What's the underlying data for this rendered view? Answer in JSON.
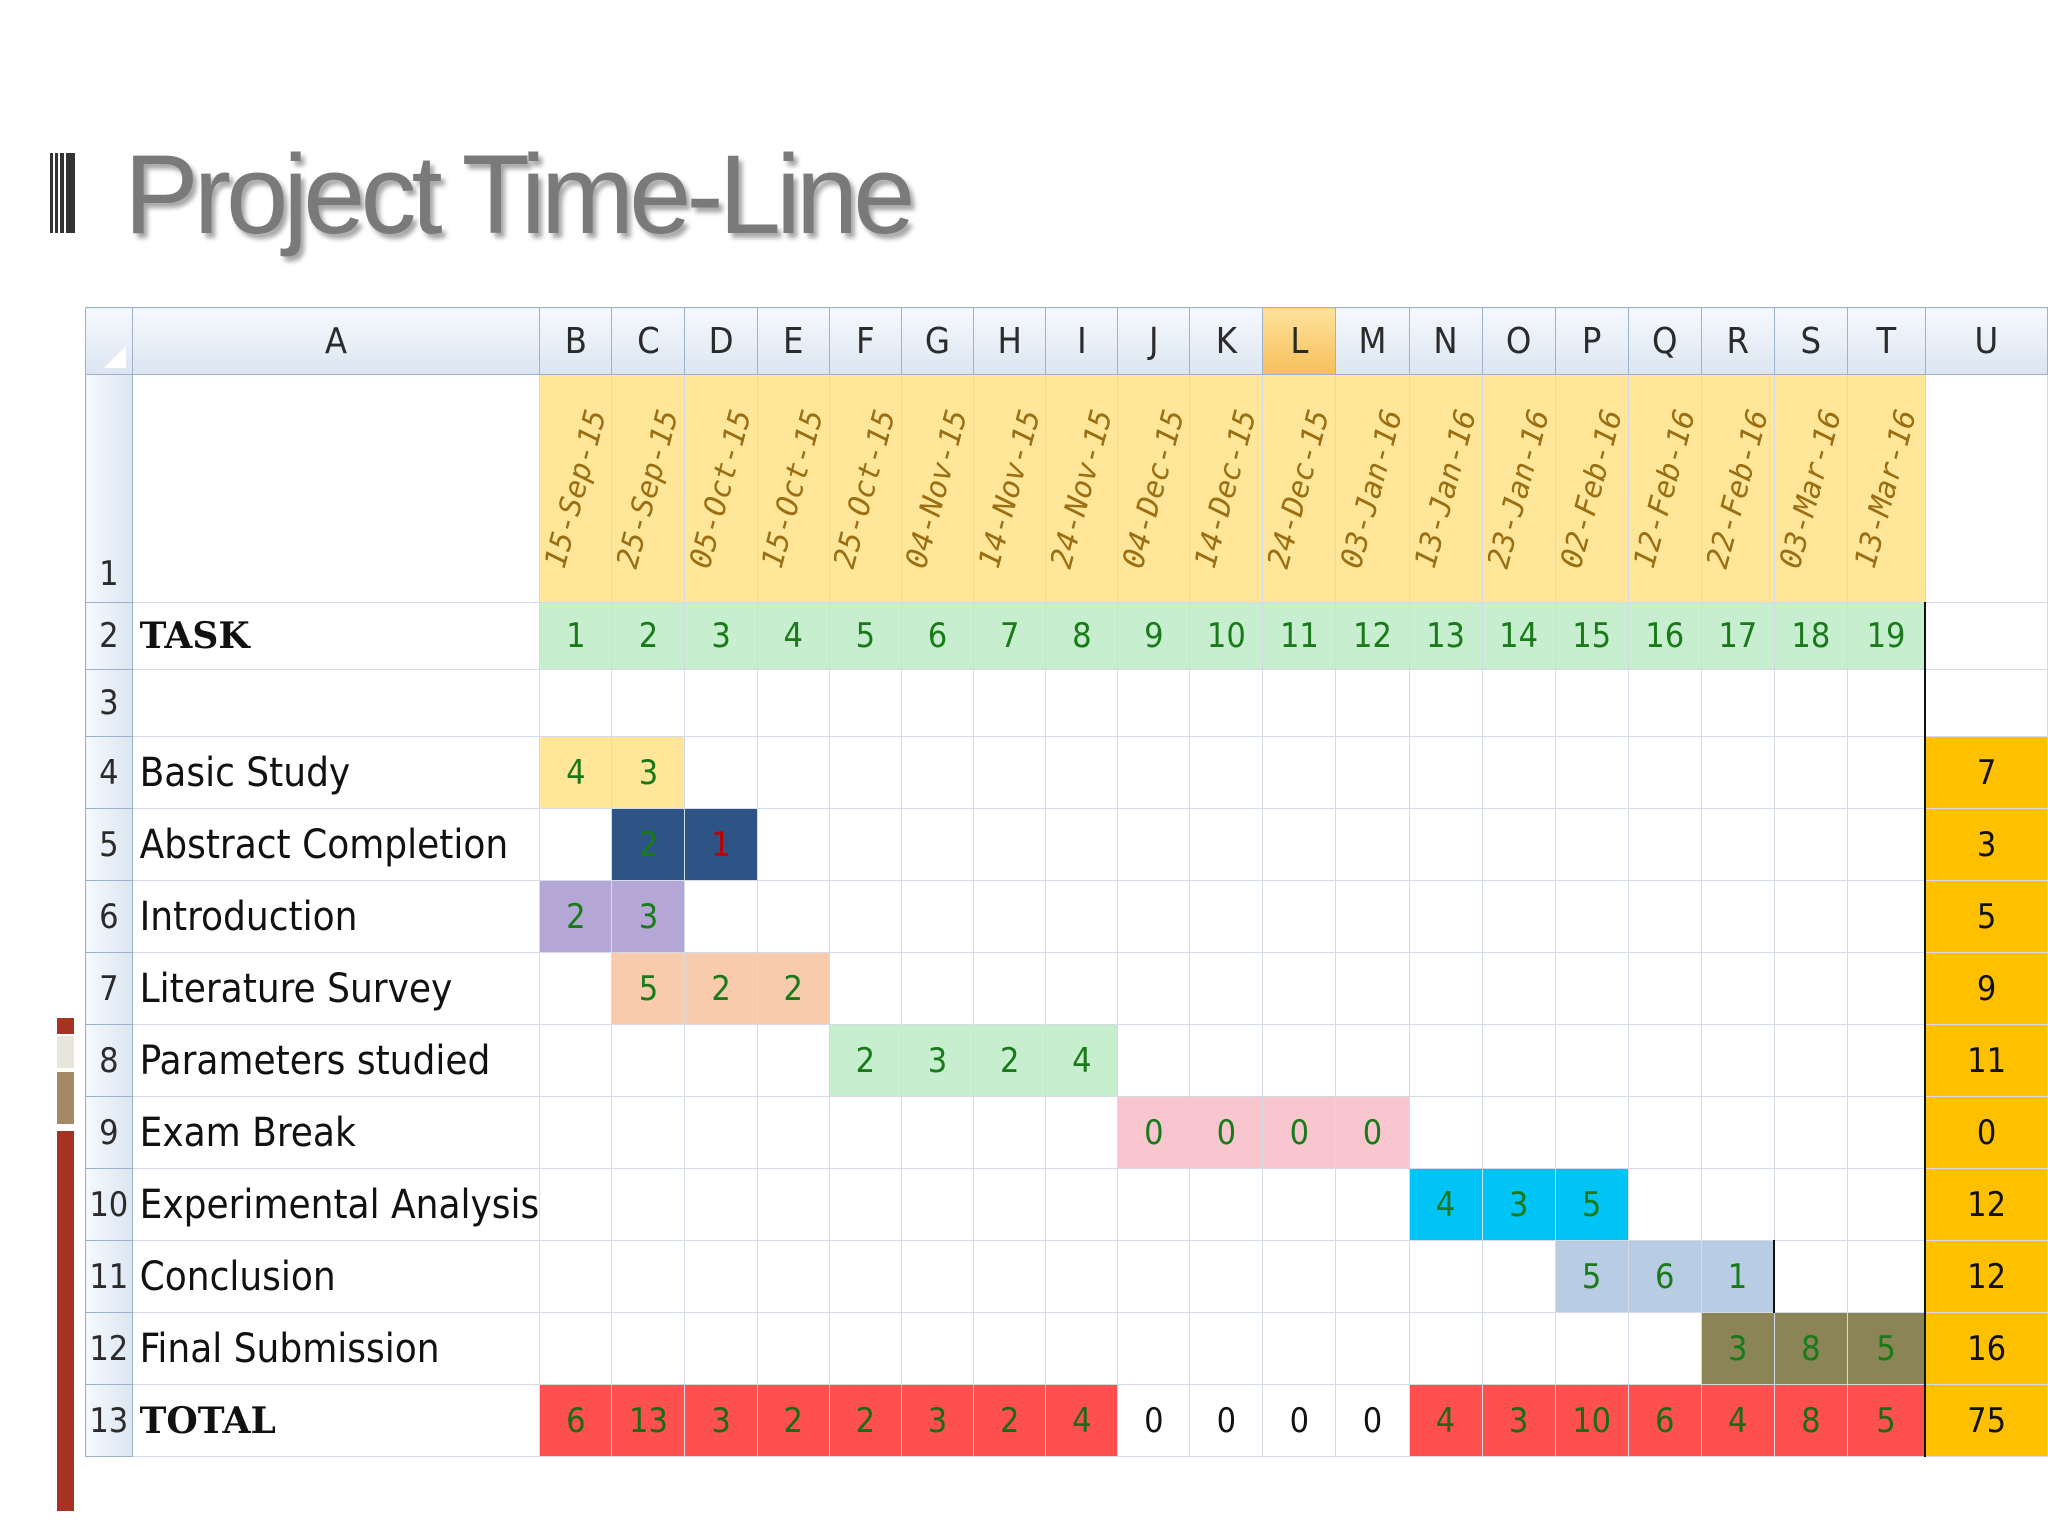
{
  "slide": {
    "title": "Project Time-Line"
  },
  "sheet": {
    "col_headers": [
      "A",
      "B",
      "C",
      "D",
      "E",
      "F",
      "G",
      "H",
      "I",
      "J",
      "K",
      "L",
      "M",
      "N",
      "O",
      "P",
      "Q",
      "R",
      "S",
      "T",
      "U"
    ],
    "active_column": "L",
    "dates": [
      "15-Sep-15",
      "25-Sep-15",
      "05-Oct-15",
      "15-Oct-15",
      "25-Oct-15",
      "04-Nov-15",
      "14-Nov-15",
      "24-Nov-15",
      "04-Dec-15",
      "14-Dec-15",
      "24-Dec-15",
      "03-Jan-16",
      "13-Jan-16",
      "23-Jan-16",
      "02-Feb-16",
      "12-Feb-16",
      "22-Feb-16",
      "03-Mar-16",
      "13-Mar-16"
    ],
    "task_header": "TASK",
    "task_numbers": [
      "1",
      "2",
      "3",
      "4",
      "5",
      "6",
      "7",
      "8",
      "9",
      "10",
      "11",
      "12",
      "13",
      "14",
      "15",
      "16",
      "17",
      "18",
      "19"
    ],
    "tasks": [
      {
        "row": "4",
        "name": "Basic Study",
        "start": 0,
        "values": [
          "4",
          "3"
        ],
        "color": "#ffe699",
        "total": "7"
      },
      {
        "row": "5",
        "name": "Abstract Completion",
        "start": 1,
        "values": [
          "2",
          "1"
        ],
        "color": "#2e5485",
        "total": "3"
      },
      {
        "row": "6",
        "name": "Introduction",
        "start": 0,
        "values": [
          "2",
          "3"
        ],
        "color": "#b4a7d6",
        "total": "5"
      },
      {
        "row": "7",
        "name": "Literature Survey",
        "start": 1,
        "values": [
          "5",
          "2",
          "2"
        ],
        "color": "#f8cbad",
        "total": "9"
      },
      {
        "row": "8",
        "name": "Parameters studied",
        "start": 4,
        "values": [
          "2",
          "3",
          "2",
          "4"
        ],
        "color": "#c7efcf",
        "total": "11"
      },
      {
        "row": "9",
        "name": "Exam Break",
        "start": 8,
        "values": [
          "0",
          "0",
          "0",
          "0"
        ],
        "color": "#f8c6cf",
        "total": "0"
      },
      {
        "row": "10",
        "name": "Experimental Analysis",
        "start": 12,
        "values": [
          "4",
          "3",
          "5"
        ],
        "color": "#00c4f5",
        "total": "12"
      },
      {
        "row": "11",
        "name": "Conclusion",
        "start": 14,
        "values": [
          "5",
          "6",
          "1"
        ],
        "color": "#b8cce4",
        "total": "12"
      },
      {
        "row": "12",
        "name": "Final Submission",
        "start": 16,
        "values": [
          "3",
          "8",
          "5"
        ],
        "color": "#8b8456",
        "total": "16"
      }
    ],
    "total_label": "TOTAL",
    "totals": [
      "6",
      "13",
      "3",
      "2",
      "2",
      "3",
      "2",
      "4",
      "0",
      "0",
      "0",
      "0",
      "4",
      "3",
      "10",
      "6",
      "4",
      "8",
      "5"
    ],
    "grand_total": "75",
    "colors": {
      "total_row": "#ff5050",
      "total_col": "#ffc000",
      "total_row_break": "#ffffff"
    }
  }
}
